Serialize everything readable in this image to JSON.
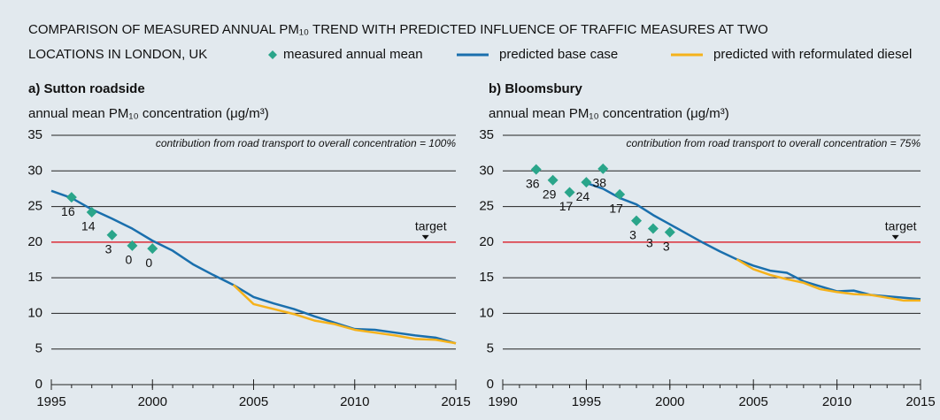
{
  "title": [
    "COMPARISON OF MEASURED ANNUAL PM₁₀ TREND WITH PREDICTED INFLUENCE OF TRAFFIC MEASURES AT TWO",
    "LOCATIONS IN LONDON, UK"
  ],
  "chart_data": [
    {
      "type": "line",
      "title": "a) Sutton roadside",
      "ylabel": "annual mean PM₁₀ concentration (μg/m³)",
      "annotation": "contribution from road transport to overall concentration = 100%",
      "target": 20,
      "target_label": "target",
      "target_x": 2013.5,
      "xlim": [
        1995,
        2015
      ],
      "xticks": [
        1995,
        2000,
        2005,
        2010,
        2015
      ],
      "ylim": [
        0,
        35
      ],
      "yticks": [
        0,
        5,
        10,
        15,
        20,
        25,
        30,
        35
      ],
      "grid": true,
      "series": [
        {
          "name": "measured annual mean",
          "color": "#2aa58a",
          "type": "scatter",
          "x": [
            1996,
            1997,
            1998,
            1999,
            2000
          ],
          "values": [
            26.3,
            24.2,
            21,
            19.5,
            19.1
          ],
          "point_labels": [
            16,
            14,
            3,
            0,
            0
          ]
        },
        {
          "name": "predicted base case",
          "color": "#1a6fad",
          "type": "line",
          "x": [
            1995,
            1996,
            1997,
            1998,
            1999,
            2000,
            2001,
            2002,
            2003,
            2004,
            2005,
            2006,
            2007,
            2008,
            2009,
            2010,
            2011,
            2012,
            2013,
            2014,
            2015
          ],
          "values": [
            27.2,
            26.2,
            24.6,
            23.3,
            21.9,
            20.2,
            18.8,
            16.9,
            15.4,
            14.0,
            12.3,
            11.4,
            10.6,
            9.6,
            8.7,
            7.8,
            7.7,
            7.3,
            6.9,
            6.6,
            5.8
          ]
        },
        {
          "name": "predicted with reformulated diesel",
          "color": "#f5b21b",
          "type": "line",
          "x": [
            2004,
            2005,
            2006,
            2007,
            2008,
            2009,
            2010,
            2011,
            2012,
            2013,
            2014,
            2015
          ],
          "values": [
            14.0,
            11.3,
            10.6,
            9.9,
            9.0,
            8.5,
            7.7,
            7.3,
            6.9,
            6.4,
            6.3,
            5.8
          ]
        }
      ]
    },
    {
      "type": "line",
      "title": "b) Bloomsbury",
      "ylabel": "annual mean PM₁₀ concentration (μg/m³)",
      "annotation": "contribution from road transport to overall concentration = 75%",
      "target": 20,
      "target_label": "target",
      "target_x": 2013.5,
      "xlim": [
        1990,
        2015
      ],
      "xticks": [
        1990,
        1995,
        2000,
        2005,
        2010,
        2015
      ],
      "ylim": [
        0,
        35
      ],
      "yticks": [
        0,
        5,
        10,
        15,
        20,
        25,
        30,
        35
      ],
      "grid": true,
      "series": [
        {
          "name": "measured annual mean",
          "color": "#2aa58a",
          "type": "scatter",
          "x": [
            1992,
            1993,
            1994,
            1995,
            1996,
            1997,
            1998,
            1999,
            2000
          ],
          "values": [
            30.2,
            28.7,
            27.0,
            28.4,
            30.3,
            26.7,
            23.0,
            21.9,
            21.4
          ],
          "point_labels": [
            36,
            29,
            17,
            24,
            38,
            17,
            3,
            3,
            3
          ]
        },
        {
          "name": "predicted base case",
          "color": "#1a6fad",
          "type": "line",
          "x": [
            1995,
            1996,
            1997,
            1998,
            1999,
            2000,
            2001,
            2002,
            2003,
            2004,
            2005,
            2006,
            2007,
            2008,
            2009,
            2010,
            2011,
            2012,
            2013,
            2014,
            2015
          ],
          "values": [
            28.3,
            27.5,
            26.2,
            25.3,
            23.8,
            22.5,
            21.2,
            19.9,
            18.7,
            17.6,
            16.7,
            16.0,
            15.7,
            14.5,
            13.8,
            13.1,
            13.2,
            12.6,
            12.4,
            12.2,
            12.0
          ]
        },
        {
          "name": "predicted with reformulated diesel",
          "color": "#f5b21b",
          "type": "line",
          "x": [
            2004,
            2005,
            2006,
            2007,
            2008,
            2009,
            2010,
            2011,
            2012,
            2013,
            2014,
            2015
          ],
          "values": [
            17.6,
            16.2,
            15.4,
            14.8,
            14.3,
            13.4,
            13.0,
            12.7,
            12.6,
            12.2,
            11.8,
            11.8
          ]
        }
      ]
    }
  ]
}
